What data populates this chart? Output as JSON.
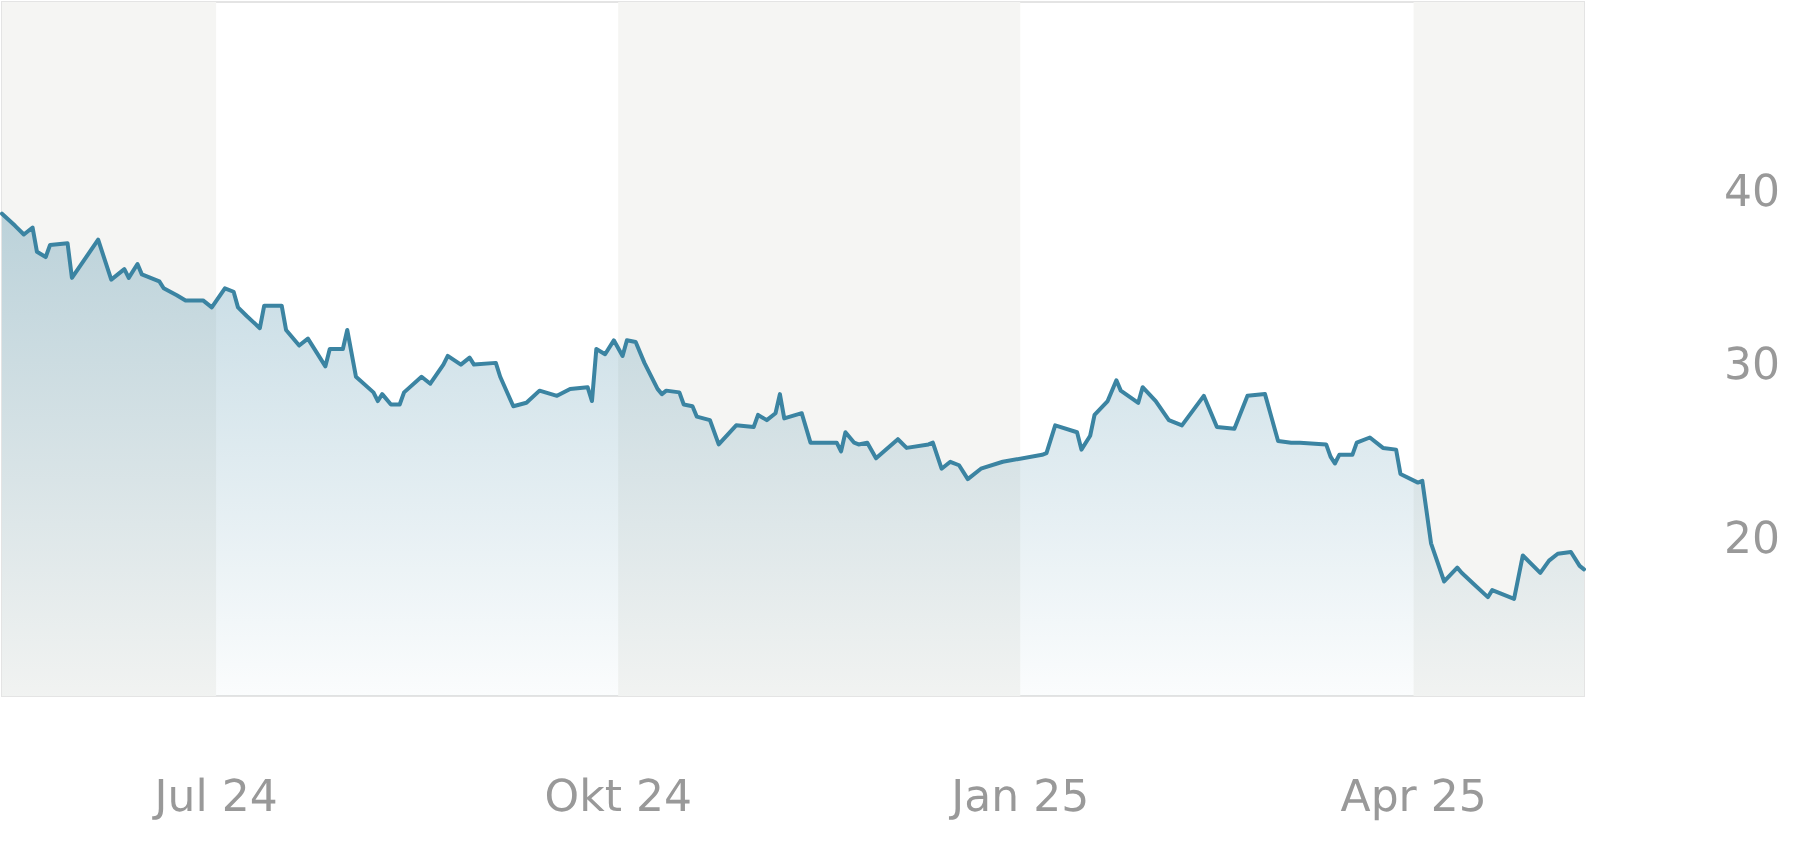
{
  "chart_data": {
    "type": "area",
    "color": "#3b84a2",
    "x": [
      "2024-05-13",
      "2024-05-16",
      "2024-05-18",
      "2024-05-20",
      "2024-05-21",
      "2024-05-23",
      "2024-05-24",
      "2024-05-28",
      "2024-05-29",
      "2024-06-04",
      "2024-06-07",
      "2024-06-10",
      "2024-06-11",
      "2024-06-13",
      "2024-06-14",
      "2024-06-18",
      "2024-06-19",
      "2024-06-22",
      "2024-06-24",
      "2024-06-28",
      "2024-06-30",
      "2024-07-03",
      "2024-07-05",
      "2024-07-06",
      "2024-07-08",
      "2024-07-11",
      "2024-07-12",
      "2024-07-16",
      "2024-07-17",
      "2024-07-20",
      "2024-07-22",
      "2024-07-26",
      "2024-07-27",
      "2024-07-30",
      "2024-07-31",
      "2024-08-02",
      "2024-08-06",
      "2024-08-07",
      "2024-08-08",
      "2024-08-10",
      "2024-08-12",
      "2024-08-13",
      "2024-08-17",
      "2024-08-19",
      "2024-08-22",
      "2024-08-23",
      "2024-08-26",
      "2024-08-28",
      "2024-08-29",
      "2024-09-03",
      "2024-09-04",
      "2024-09-07",
      "2024-09-10",
      "2024-09-13",
      "2024-09-17",
      "2024-09-20",
      "2024-09-24",
      "2024-09-25",
      "2024-09-26",
      "2024-09-28",
      "2024-09-30",
      "2024-10-02",
      "2024-10-03",
      "2024-10-05",
      "2024-10-07",
      "2024-10-10",
      "2024-10-11",
      "2024-10-12",
      "2024-10-15",
      "2024-10-16",
      "2024-10-18",
      "2024-10-19",
      "2024-10-22",
      "2024-10-24",
      "2024-10-28",
      "2024-11-01",
      "2024-11-02",
      "2024-11-04",
      "2024-11-06",
      "2024-11-07",
      "2024-11-08",
      "2024-11-12",
      "2024-11-14",
      "2024-11-20",
      "2024-11-21",
      "2024-11-22",
      "2024-11-24",
      "2024-11-25",
      "2024-11-27",
      "2024-11-29",
      "2024-12-04",
      "2024-12-06",
      "2024-12-11",
      "2024-12-12",
      "2024-12-14",
      "2024-12-16",
      "2024-12-18",
      "2024-12-20",
      "2024-12-23",
      "2024-12-28",
      "2025-01-06",
      "2025-01-07",
      "2025-01-09",
      "2025-01-14",
      "2025-01-15",
      "2025-01-17",
      "2025-01-18",
      "2025-01-21",
      "2025-01-23",
      "2025-01-24",
      "2025-01-28",
      "2025-01-29",
      "2025-02-01",
      "2025-02-04",
      "2025-02-07",
      "2025-02-12",
      "2025-02-15",
      "2025-02-19",
      "2025-02-22",
      "2025-02-26",
      "2025-03-01",
      "2025-03-04",
      "2025-03-06",
      "2025-03-12",
      "2025-03-13",
      "2025-03-14",
      "2025-03-15",
      "2025-03-18",
      "2025-03-19",
      "2025-03-22",
      "2025-03-25",
      "2025-03-28",
      "2025-03-29",
      "2025-04-02",
      "2025-04-03",
      "2025-04-05",
      "2025-04-08",
      "2025-04-11",
      "2025-04-12",
      "2025-04-15",
      "2025-04-18",
      "2025-04-19",
      "2025-04-24",
      "2025-04-26",
      "2025-04-30",
      "2025-05-02",
      "2025-05-04",
      "2025-05-07",
      "2025-05-09",
      "2025-05-10"
    ],
    "values": [
      38.8,
      38.1,
      37.6,
      38.0,
      36.6,
      36.3,
      37.0,
      37.1,
      35.1,
      37.3,
      35.0,
      35.6,
      35.1,
      35.9,
      35.3,
      34.9,
      34.5,
      34.1,
      33.8,
      33.8,
      33.4,
      34.5,
      34.3,
      33.4,
      32.9,
      32.2,
      33.5,
      33.5,
      32.1,
      31.2,
      31.6,
      30.0,
      31.0,
      31.0,
      32.1,
      29.4,
      28.5,
      28.0,
      28.4,
      27.8,
      27.8,
      28.5,
      29.4,
      29.0,
      30.1,
      30.6,
      30.1,
      30.5,
      30.1,
      30.2,
      29.4,
      27.7,
      27.9,
      28.6,
      28.3,
      28.7,
      28.8,
      28.0,
      31.0,
      30.7,
      31.5,
      30.6,
      31.5,
      31.4,
      30.2,
      28.7,
      28.4,
      28.6,
      28.5,
      27.8,
      27.7,
      27.1,
      26.9,
      25.5,
      26.6,
      26.5,
      27.2,
      26.9,
      27.3,
      28.4,
      27.0,
      27.3,
      25.6,
      25.6,
      25.1,
      26.2,
      25.6,
      25.5,
      25.6,
      24.7,
      25.8,
      25.3,
      25.5,
      25.6,
      24.1,
      24.5,
      24.3,
      23.5,
      24.1,
      24.5,
      24.9,
      25.0,
      26.6,
      26.2,
      25.2,
      26.0,
      27.2,
      28.0,
      29.2,
      28.6,
      27.9,
      28.8,
      28.0,
      26.9,
      26.6,
      28.3,
      26.5,
      26.4,
      28.3,
      28.4,
      25.7,
      25.6,
      25.6,
      25.5,
      24.8,
      24.4,
      24.9,
      24.9,
      25.6,
      25.9,
      25.3,
      25.2,
      23.8,
      23.3,
      23.4,
      19.8,
      17.6,
      18.4,
      18.1,
      17.4,
      16.7,
      17.1,
      16.6,
      19.1,
      18.1,
      18.8,
      19.2,
      19.3,
      18.5,
      18.3
    ],
    "xlim": [
      "2024-05-13",
      "2025-05-10"
    ],
    "xticks": [
      {
        "value": "2024-07-01",
        "label": "Jul 24"
      },
      {
        "value": "2024-10-01",
        "label": "Okt 24"
      },
      {
        "value": "2025-01-01",
        "label": "Jan 25"
      },
      {
        "value": "2025-04-01",
        "label": "Apr 25"
      }
    ],
    "ylim": [
      11,
      51
    ],
    "yticks": [
      20,
      30,
      40
    ],
    "bands": [
      {
        "axis": "x",
        "from": "2024-05-13",
        "to": "2024-07-01",
        "color": "#f5f5f3"
      },
      {
        "axis": "x",
        "from": "2024-10-01",
        "to": "2025-01-01",
        "color": "#f5f5f3"
      },
      {
        "axis": "x",
        "from": "2025-04-01",
        "to": "2025-05-10",
        "color": "#f5f5f3"
      }
    ],
    "grid": false,
    "marker": "none",
    "line_style": "solid"
  }
}
